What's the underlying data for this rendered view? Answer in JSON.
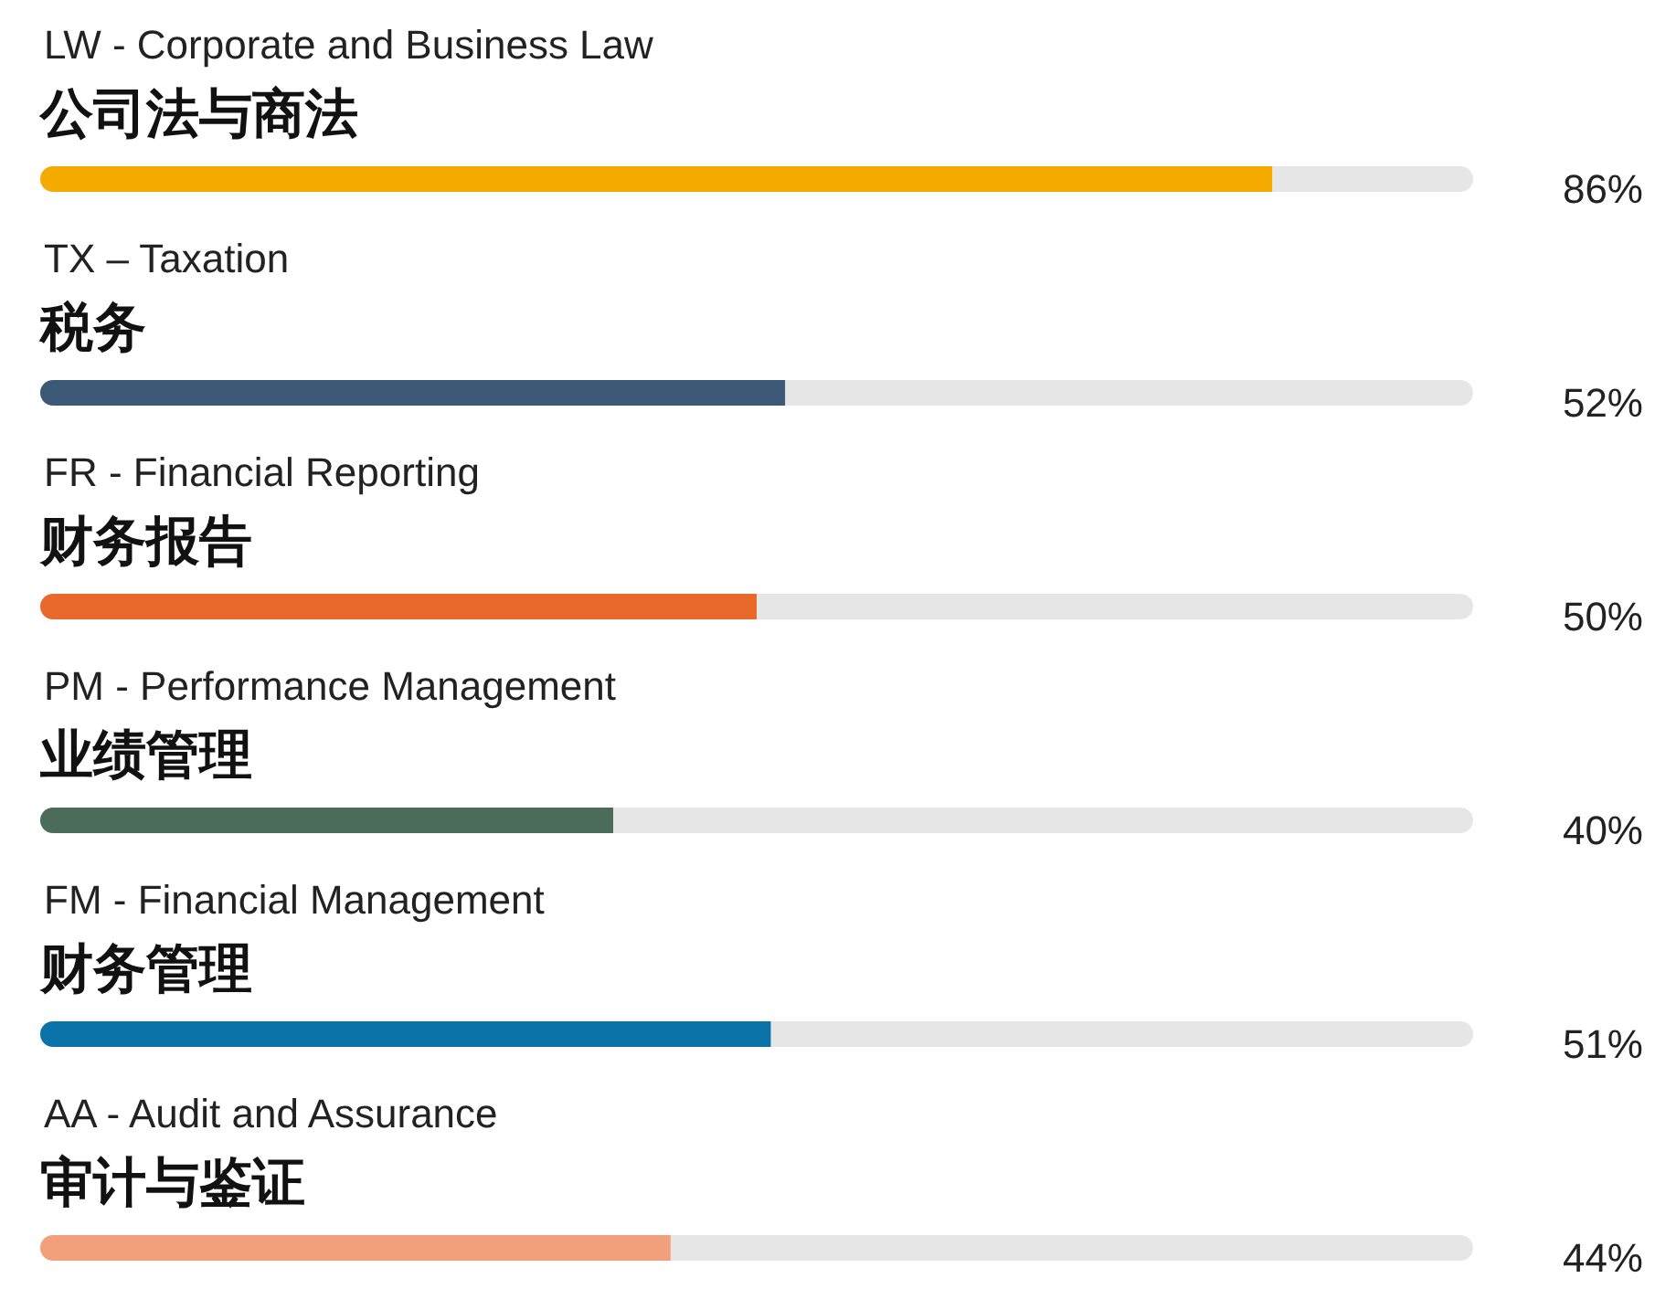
{
  "chart_data": {
    "type": "bar",
    "orientation": "horizontal",
    "stacked": true,
    "categories": [
      "LW - Corporate and Business Law\n公司法与商法",
      "TX – Taxation\n税务",
      "FR - Financial Reporting\n财务报告",
      "PM - Performance Management\n业绩管理",
      "FM - Financial Management\n财务管理",
      "AA - Audit and Assurance\n审计与鉴证"
    ],
    "series": [
      {
        "colors": [
          "#f5aa00",
          "#3c5a78",
          "#e8692b",
          "#4b6b5b",
          "#0b72a8",
          "#f2a07c"
        ],
        "values": [
          86,
          52,
          50,
          40,
          51,
          44
        ],
        "value_labels": [
          "86%",
          "52%",
          "50%",
          "40%",
          "51%",
          "44%"
        ]
      },
      {
        "color": "#e6e6e6",
        "values": [
          14,
          48,
          50,
          60,
          49,
          56
        ]
      }
    ],
    "xlim": [
      0,
      100
    ]
  }
}
